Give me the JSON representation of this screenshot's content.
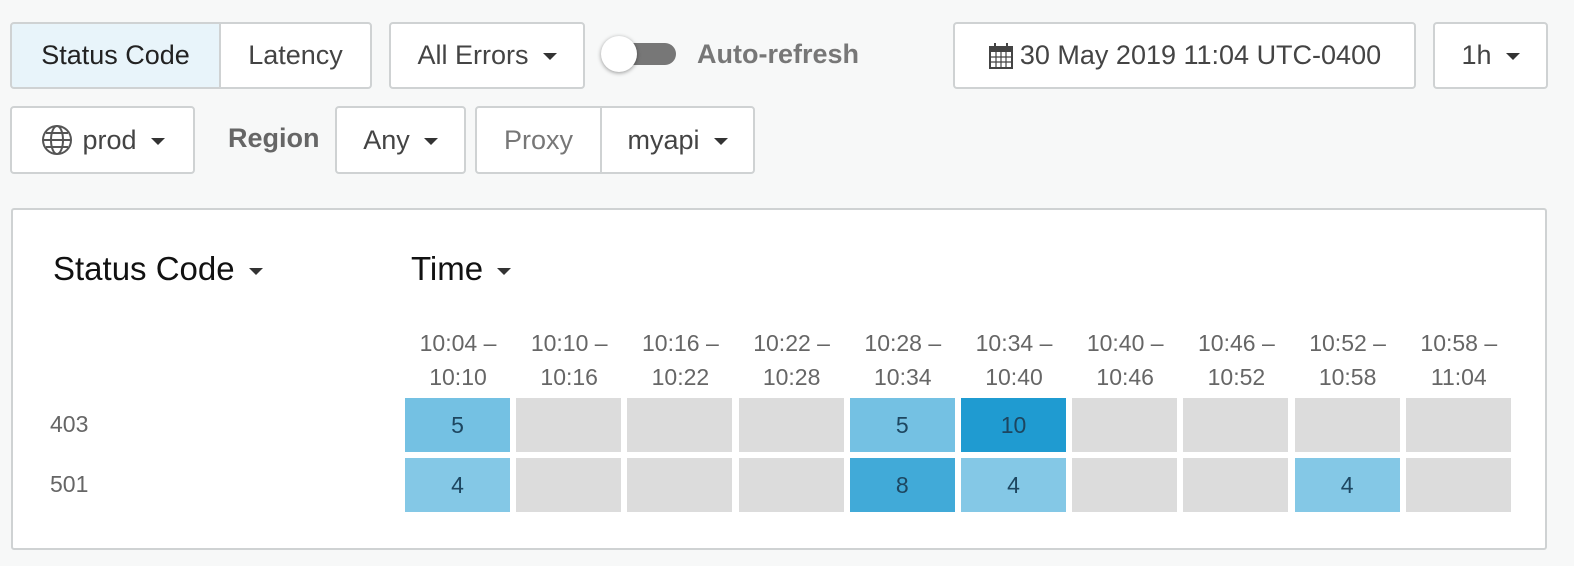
{
  "toolbar": {
    "view_tabs": [
      "Status Code",
      "Latency"
    ],
    "error_filter": "All Errors",
    "auto_refresh_label": "Auto-refresh",
    "date": "30 May 2019 11:04 UTC-0400",
    "range": "1h",
    "environment": "prod",
    "region_label": "Region",
    "region": "Any",
    "proxy_label": "Proxy",
    "proxy": "myapi"
  },
  "panel": {
    "row_dimension": "Status Code",
    "column_dimension": "Time",
    "columns": [
      "10:04 – 10:10",
      "10:10 – 10:16",
      "10:16 – 10:22",
      "10:22 – 10:28",
      "10:28 – 10:34",
      "10:34 – 10:40",
      "10:40 – 10:46",
      "10:46 – 10:52",
      "10:52 – 10:58",
      "10:58 – 11:04"
    ],
    "rows": [
      {
        "label": "403",
        "cells": [
          5,
          null,
          null,
          null,
          5,
          10,
          null,
          null,
          null,
          null
        ]
      },
      {
        "label": "501",
        "cells": [
          4,
          null,
          null,
          null,
          8,
          4,
          null,
          null,
          4,
          null
        ]
      }
    ]
  }
}
